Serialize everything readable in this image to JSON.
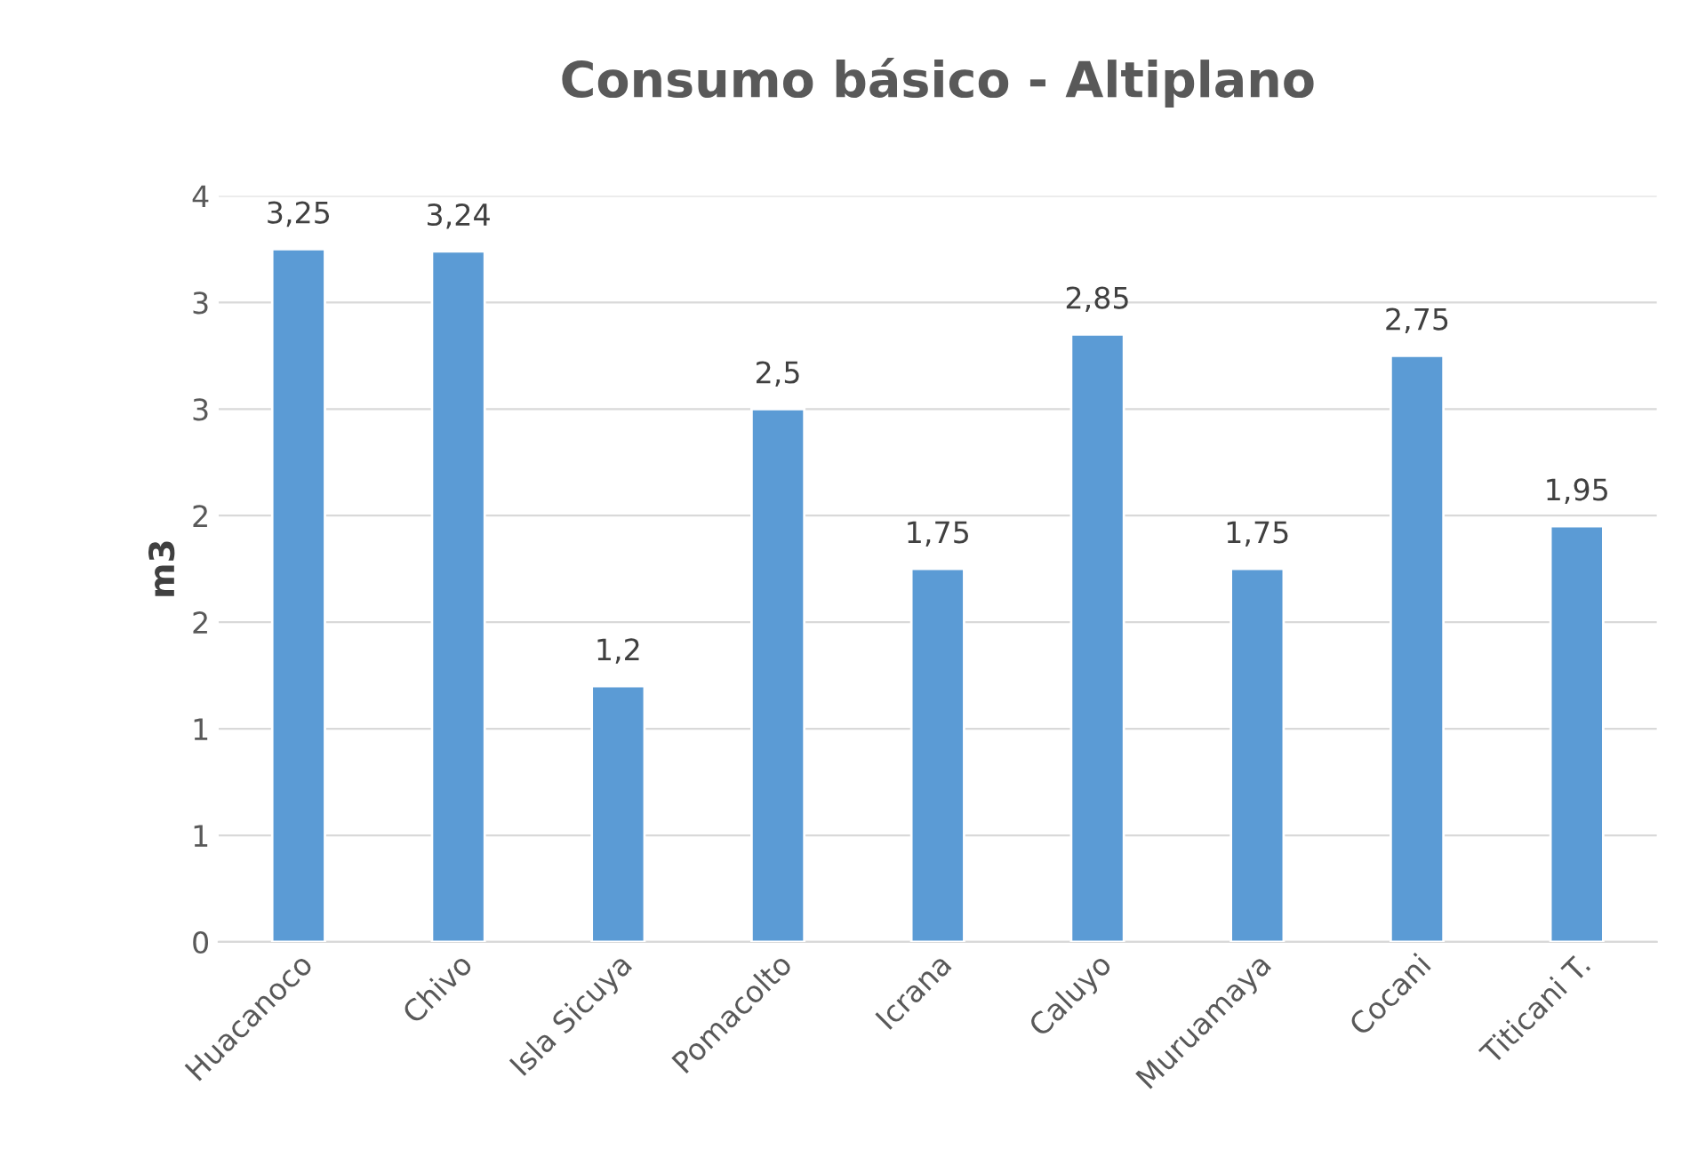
{
  "chart_data": {
    "type": "bar",
    "title": "Consumo básico - Altiplano",
    "ylabel": "m3",
    "categories": [
      "Huacanoco",
      "Chivo",
      "Isla Sicuya",
      "Pomacolto",
      "Icrana",
      "Caluyo",
      "Muruamaya",
      "Cocani",
      "Titicani T."
    ],
    "values": [
      3.25,
      3.24,
      1.2,
      2.5,
      1.75,
      2.85,
      1.75,
      2.75,
      1.95
    ],
    "value_labels": [
      "3,25",
      "3,24",
      "1,2",
      "2,5",
      "1,75",
      "2,85",
      "1,75",
      "2,75",
      "1,95"
    ],
    "color": "#5b9bd5",
    "ylim": [
      0,
      3.5
    ],
    "yticks": [
      0,
      {
        "value": 0.5,
        "label": "1"
      },
      1,
      {
        "value": 1.5,
        "label": "2"
      },
      2,
      {
        "value": 2.5,
        "label": "3"
      },
      3,
      {
        "value": 3.5,
        "label": "4"
      }
    ],
    "grid": "y"
  }
}
